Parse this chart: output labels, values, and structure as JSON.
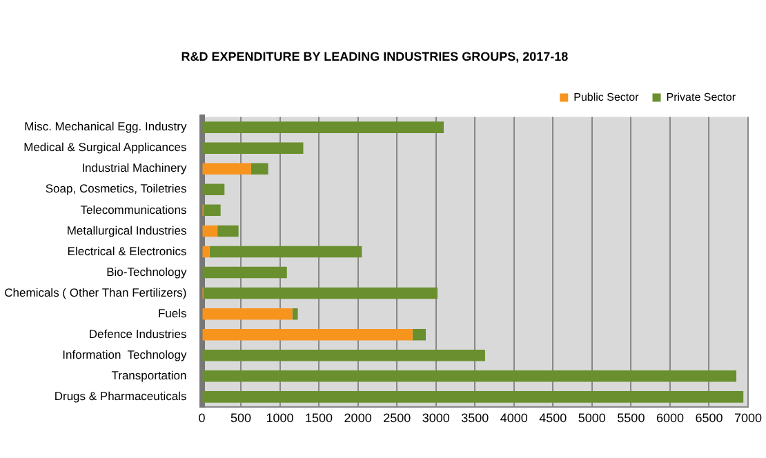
{
  "chart_data": {
    "type": "bar",
    "orientation": "horizontal",
    "stacked": true,
    "title": "R&D EXPENDITURE BY LEADING INDUSTRIES GROUPS, 2017-18",
    "categories": [
      "Misc. Mechanical Egg. Industry",
      "Medical & Surgical Applicances",
      "Industrial Machinery",
      "Soap, Cosmetics, Toiletries",
      "Telecommunications",
      "Metallurgical Industries",
      "Electrical & Electronics",
      "Bio-Technology",
      "Chemicals ( Other Than Fertilizers)",
      "Fuels",
      "Defence Industries",
      "Information  Technology",
      "Transportation",
      "Drugs & Pharmaceuticals"
    ],
    "series": [
      {
        "name": "Public Sector",
        "color": "#f7941d",
        "values": [
          0,
          0,
          630,
          0,
          20,
          200,
          100,
          0,
          20,
          1160,
          2700,
          0,
          0,
          0
        ]
      },
      {
        "name": "Private Sector",
        "color": "#6a8f2e",
        "values": [
          3100,
          1300,
          220,
          290,
          220,
          270,
          1950,
          1090,
          3000,
          70,
          170,
          3630,
          6850,
          6940
        ]
      }
    ],
    "xlim": [
      0,
      7000
    ],
    "xticks": [
      0,
      500,
      1000,
      1500,
      2000,
      2500,
      3000,
      3500,
      4000,
      4500,
      5000,
      5500,
      6000,
      6500,
      7000
    ],
    "grid": "x",
    "legend": "top right"
  }
}
